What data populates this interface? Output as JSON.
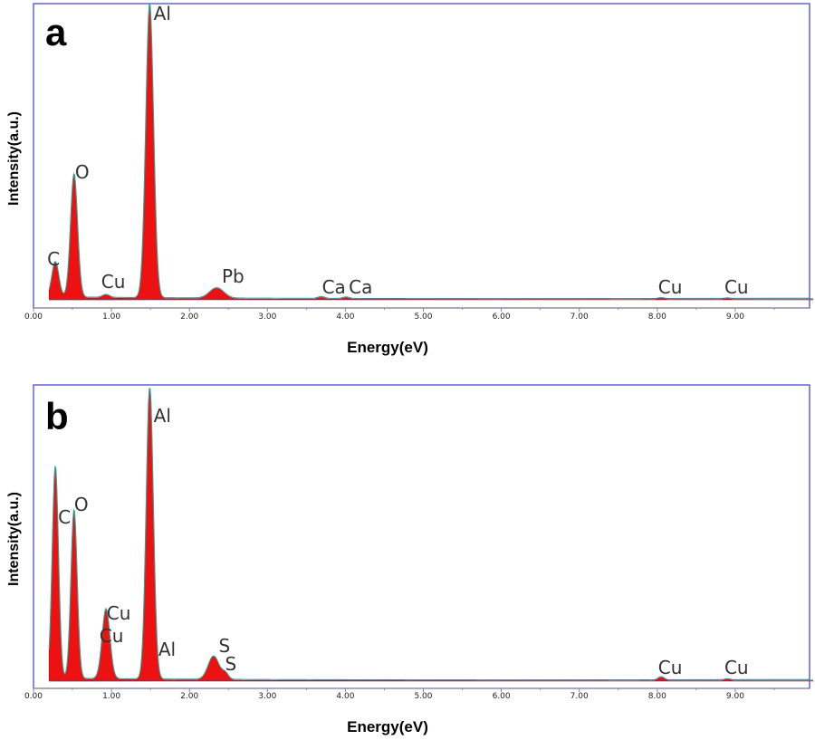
{
  "chart_data": [
    {
      "panel": "a",
      "type": "area",
      "xlabel": "Energy(eV)",
      "ylabel": "Intensity(a.u.)",
      "xlim": [
        0,
        10
      ],
      "x_ticks": [
        "0.00",
        "1.00",
        "2.00",
        "3.00",
        "4.00",
        "5.00",
        "6.00",
        "7.00",
        "8.00",
        "9.00"
      ],
      "peaks": [
        {
          "label": "C",
          "x": 0.28,
          "y": 12
        },
        {
          "label": "O",
          "x": 0.52,
          "y": 42
        },
        {
          "label": "Cu",
          "x": 0.93,
          "y": 1.0
        },
        {
          "label": "Al",
          "x": 1.49,
          "y": 100
        },
        {
          "label": "Pb",
          "x": 2.35,
          "y": 3.5
        },
        {
          "label": "Ca",
          "x": 3.69,
          "y": 0.6
        },
        {
          "label": "Ca",
          "x": 4.01,
          "y": 0.5
        },
        {
          "label": "Cu",
          "x": 8.05,
          "y": 0.4
        },
        {
          "label": "Cu",
          "x": 8.9,
          "y": 0.3
        }
      ]
    },
    {
      "panel": "b",
      "type": "area",
      "xlabel": "Energy(eV)",
      "ylabel": "Intensity(a.u.)",
      "xlim": [
        0,
        10
      ],
      "x_ticks": [
        "0.00",
        "1.00",
        "2.00",
        "3.00",
        "4.00",
        "5.00",
        "6.00",
        "7.00",
        "8.00",
        "9.00"
      ],
      "peaks": [
        {
          "label": "C",
          "x": 0.28,
          "y": 73
        },
        {
          "label": "O",
          "x": 0.52,
          "y": 58
        },
        {
          "label": "Cu",
          "x": 0.93,
          "y": 12
        },
        {
          "label": "Cu",
          "x": 0.93,
          "y": 12
        },
        {
          "label": "Al",
          "x": 1.49,
          "y": 100
        },
        {
          "label": "Al",
          "x": 1.55,
          "y": 3
        },
        {
          "label": "S",
          "x": 2.31,
          "y": 8
        },
        {
          "label": "S",
          "x": 2.46,
          "y": 2
        },
        {
          "label": "Cu",
          "x": 8.05,
          "y": 1.2
        },
        {
          "label": "Cu",
          "x": 8.9,
          "y": 0.5
        }
      ]
    }
  ]
}
